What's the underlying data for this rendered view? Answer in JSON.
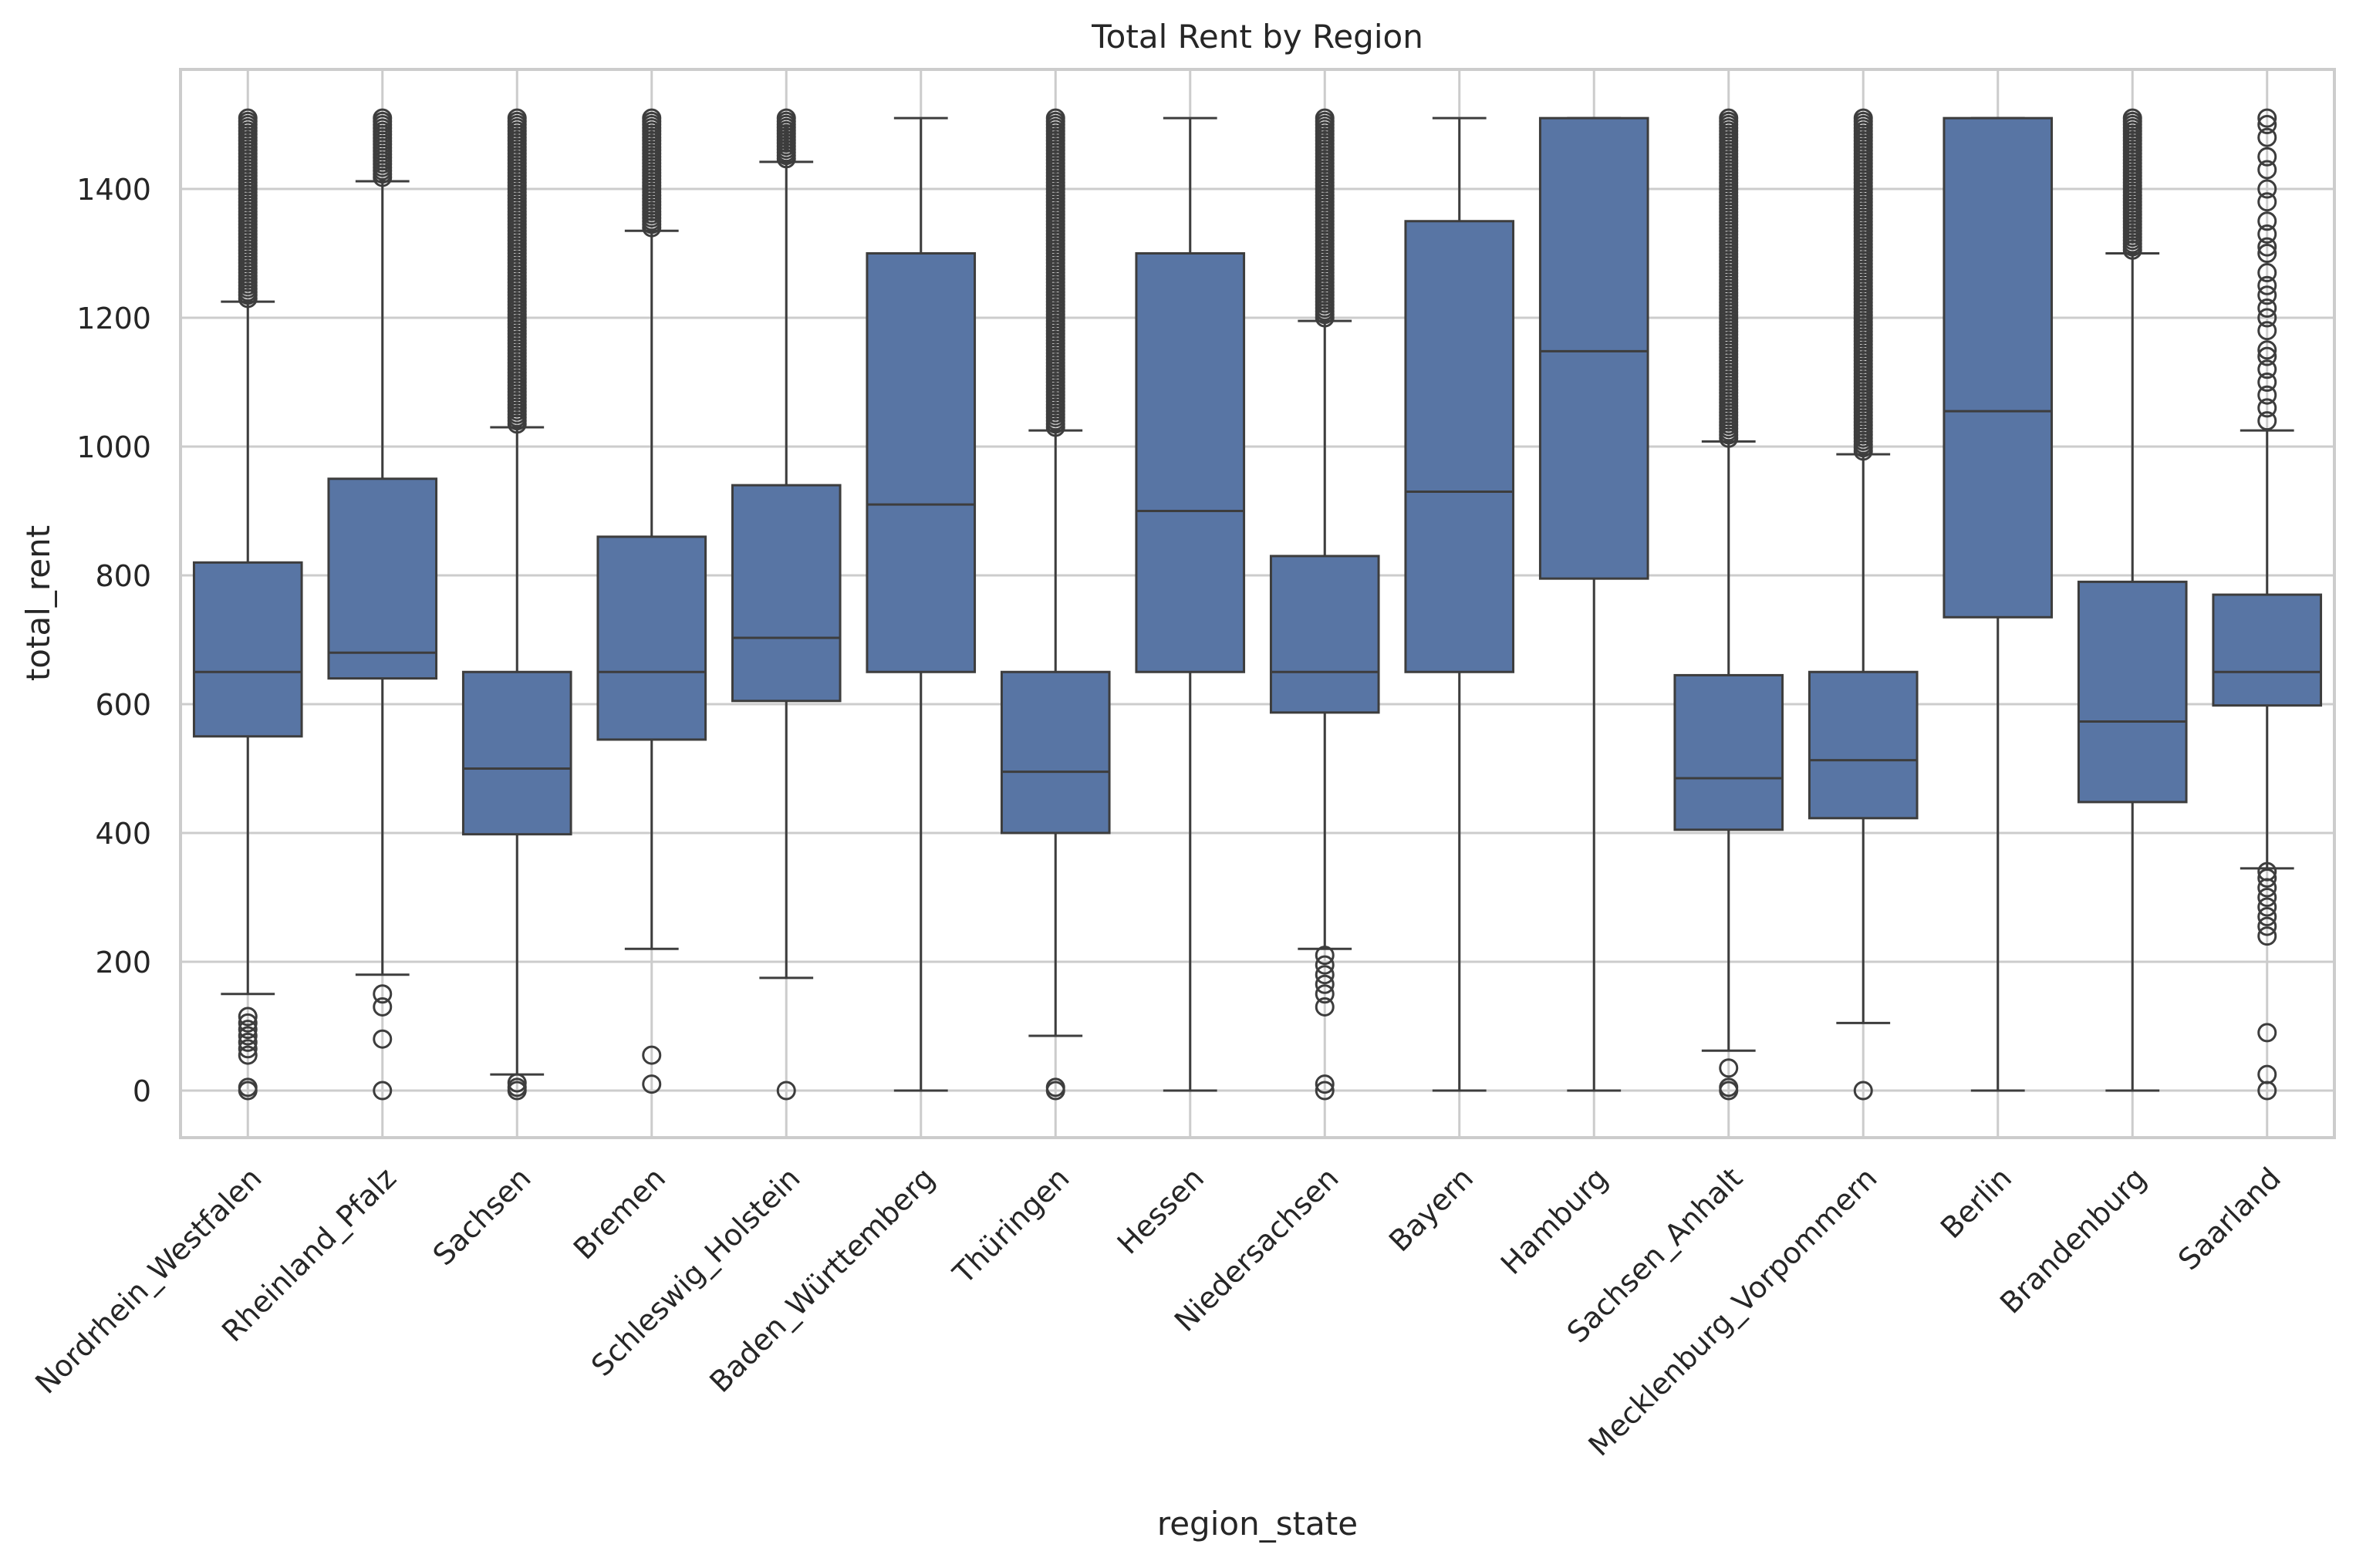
{
  "chart_data": {
    "type": "box",
    "title": "Total Rent by Region",
    "xlabel": "region_state",
    "ylabel": "total_rent",
    "ylim": [
      -70,
      1580
    ],
    "yticks": [
      0,
      200,
      400,
      600,
      800,
      1000,
      1200,
      1400
    ],
    "grid": true,
    "legend": "none",
    "colors": {
      "box_fill": "#5875A4",
      "line": "#3d3d3d",
      "grid": "#cccccc",
      "frame": "#cccccc"
    },
    "categories": [
      "Nordrhein_Westfalen",
      "Rheinland_Pfalz",
      "Sachsen",
      "Bremen",
      "Schleswig_Holstein",
      "Baden_Württemberg",
      "Thüringen",
      "Hessen",
      "Niedersachsen",
      "Bayern",
      "Hamburg",
      "Sachsen_Anhalt",
      "Mecklenburg_Vorpommern",
      "Berlin",
      "Brandenburg",
      "Saarland"
    ],
    "boxes": [
      {
        "whisker_low": 150,
        "q1": 550,
        "median": 650,
        "q3": 820,
        "whisker_high": 1225,
        "outliers_high_range": [
          1230,
          1510
        ],
        "outliers_low": [
          0,
          5,
          55,
          65,
          75,
          85,
          95,
          105,
          115
        ]
      },
      {
        "whisker_low": 180,
        "q1": 640,
        "median": 680,
        "q3": 950,
        "whisker_high": 1412,
        "outliers_high_range": [
          1418,
          1510
        ],
        "outliers_low": [
          0,
          80,
          130,
          150
        ]
      },
      {
        "whisker_low": 25,
        "q1": 398,
        "median": 500,
        "q3": 650,
        "whisker_high": 1030,
        "outliers_high_range": [
          1035,
          1510
        ],
        "outliers_low": [
          0,
          5,
          12
        ]
      },
      {
        "whisker_low": 220,
        "q1": 545,
        "median": 650,
        "q3": 860,
        "whisker_high": 1335,
        "outliers_high_range": [
          1340,
          1510
        ],
        "outliers_low": [
          10,
          55
        ]
      },
      {
        "whisker_low": 175,
        "q1": 605,
        "median": 703,
        "q3": 940,
        "whisker_high": 1442,
        "outliers_high_range": [
          1447,
          1510
        ],
        "outliers_low": [
          0
        ]
      },
      {
        "whisker_low": 0,
        "q1": 650,
        "median": 910,
        "q3": 1300,
        "whisker_high": 1510,
        "outliers_high_range": null,
        "outliers_low": []
      },
      {
        "whisker_low": 85,
        "q1": 400,
        "median": 495,
        "q3": 650,
        "whisker_high": 1025,
        "outliers_high_range": [
          1030,
          1510
        ],
        "outliers_low": [
          0,
          5
        ]
      },
      {
        "whisker_low": 0,
        "q1": 650,
        "median": 900,
        "q3": 1300,
        "whisker_high": 1510,
        "outliers_high_range": null,
        "outliers_low": []
      },
      {
        "whisker_low": 220,
        "q1": 587,
        "median": 650,
        "q3": 830,
        "whisker_high": 1195,
        "outliers_high_range": [
          1200,
          1510
        ],
        "outliers_low": [
          0,
          10,
          130,
          150,
          165,
          180,
          195,
          210
        ]
      },
      {
        "whisker_low": 0,
        "q1": 650,
        "median": 930,
        "q3": 1350,
        "whisker_high": 1510,
        "outliers_high_range": null,
        "outliers_low": []
      },
      {
        "whisker_low": 0,
        "q1": 795,
        "median": 1148,
        "q3": 1510,
        "whisker_high": 1510,
        "outliers_high_range": null,
        "outliers_low": []
      },
      {
        "whisker_low": 62,
        "q1": 405,
        "median": 485,
        "q3": 645,
        "whisker_high": 1008,
        "outliers_high_range": [
          1013,
          1510
        ],
        "outliers_low": [
          0,
          5,
          35
        ]
      },
      {
        "whisker_low": 105,
        "q1": 423,
        "median": 513,
        "q3": 650,
        "whisker_high": 988,
        "outliers_high_range": [
          993,
          1510
        ],
        "outliers_low": [
          0
        ]
      },
      {
        "whisker_low": 0,
        "q1": 735,
        "median": 1055,
        "q3": 1510,
        "whisker_high": 1510,
        "outliers_high_range": null,
        "outliers_low": []
      },
      {
        "whisker_low": 0,
        "q1": 448,
        "median": 573,
        "q3": 790,
        "whisker_high": 1300,
        "outliers_high_range": [
          1305,
          1510
        ],
        "outliers_low": []
      },
      {
        "whisker_low": 345,
        "q1": 598,
        "median": 650,
        "q3": 770,
        "whisker_high": 1025,
        "outliers_high_range": [
          1030,
          1510
        ],
        "outliers_high_sparse": [
          1040,
          1060,
          1080,
          1100,
          1120,
          1140,
          1150,
          1180,
          1200,
          1215,
          1235,
          1250,
          1270,
          1300,
          1310,
          1330,
          1350,
          1380,
          1400,
          1430,
          1450,
          1480,
          1500,
          1510
        ],
        "outliers_low": [
          0,
          25,
          90,
          240,
          255,
          270,
          285,
          300,
          315,
          330,
          340
        ]
      }
    ]
  }
}
